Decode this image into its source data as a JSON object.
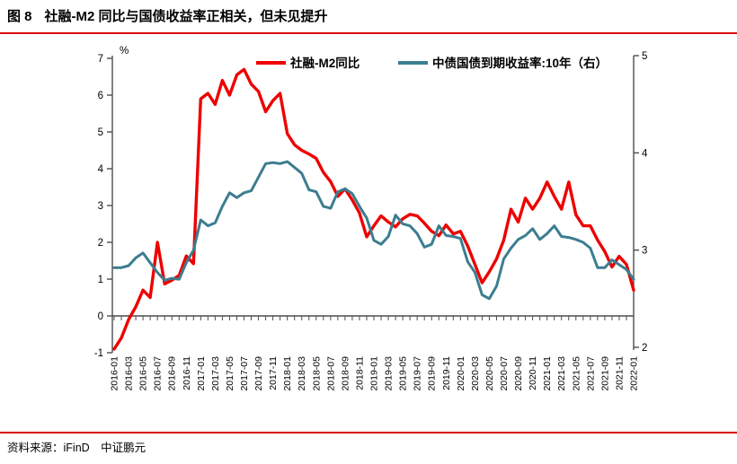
{
  "page": {
    "title_tag": "图 8",
    "title_text": "社融-M2 同比与国债收益率正相关，但未见提升",
    "source_text": "资料来源：iFinD　中证鹏元"
  },
  "colors": {
    "rule_red": "#d80000",
    "series_red": "#ee0000",
    "series_teal": "#3c7d90",
    "axis_line": "#4d4d4d",
    "label_text": "#000000"
  },
  "chart_data": {
    "type": "line",
    "x": [
      "2016-01",
      "2016-02",
      "2016-03",
      "2016-04",
      "2016-05",
      "2016-06",
      "2016-07",
      "2016-08",
      "2016-09",
      "2016-10",
      "2016-11",
      "2016-12",
      "2017-01",
      "2017-02",
      "2017-03",
      "2017-04",
      "2017-05",
      "2017-06",
      "2017-07",
      "2017-08",
      "2017-09",
      "2017-10",
      "2017-11",
      "2017-12",
      "2018-01",
      "2018-02",
      "2018-03",
      "2018-04",
      "2018-05",
      "2018-06",
      "2018-07",
      "2018-08",
      "2018-09",
      "2018-10",
      "2018-11",
      "2018-12",
      "2019-01",
      "2019-02",
      "2019-03",
      "2019-04",
      "2019-05",
      "2019-06",
      "2019-07",
      "2019-08",
      "2019-09",
      "2019-10",
      "2019-11",
      "2019-12",
      "2020-01",
      "2020-02",
      "2020-03",
      "2020-04",
      "2020-05",
      "2020-06",
      "2020-07",
      "2020-08",
      "2020-09",
      "2020-10",
      "2020-11",
      "2020-12",
      "2021-01",
      "2021-02",
      "2021-03",
      "2021-04",
      "2021-05",
      "2021-06",
      "2021-07",
      "2021-08",
      "2021-09",
      "2021-10",
      "2021-11",
      "2021-12",
      "2022-01"
    ],
    "x_label_every": 2,
    "series": [
      {
        "name": "社融-M2同比",
        "axis": "left",
        "values": [
          -0.9,
          -0.6,
          -0.1,
          0.25,
          0.7,
          0.5,
          2.0,
          0.87,
          0.97,
          1.1,
          1.63,
          1.42,
          5.9,
          6.05,
          5.75,
          6.4,
          6.0,
          6.55,
          6.7,
          6.3,
          6.1,
          5.55,
          5.85,
          6.05,
          4.95,
          4.65,
          4.5,
          4.4,
          4.28,
          3.9,
          3.65,
          3.25,
          3.45,
          3.15,
          2.8,
          2.15,
          2.45,
          2.72,
          2.55,
          2.42,
          2.64,
          2.76,
          2.72,
          2.52,
          2.3,
          2.18,
          2.47,
          2.23,
          2.3,
          1.9,
          1.4,
          0.9,
          1.2,
          1.55,
          2.06,
          2.9,
          2.55,
          3.2,
          2.9,
          3.2,
          3.64,
          3.25,
          2.9,
          3.64,
          2.75,
          2.45,
          2.45,
          2.06,
          1.75,
          1.33,
          1.62,
          1.4,
          0.7
        ]
      },
      {
        "name": "中债国债到期收益率:10年（右）",
        "axis": "right",
        "values": [
          2.82,
          2.82,
          2.84,
          2.92,
          2.97,
          2.87,
          2.77,
          2.69,
          2.71,
          2.7,
          2.87,
          3.0,
          3.31,
          3.25,
          3.28,
          3.45,
          3.59,
          3.54,
          3.59,
          3.61,
          3.75,
          3.89,
          3.9,
          3.89,
          3.91,
          3.85,
          3.79,
          3.62,
          3.6,
          3.45,
          3.43,
          3.6,
          3.63,
          3.58,
          3.45,
          3.33,
          3.1,
          3.06,
          3.14,
          3.36,
          3.27,
          3.25,
          3.17,
          3.03,
          3.06,
          3.25,
          3.15,
          3.14,
          3.12,
          2.88,
          2.77,
          2.54,
          2.5,
          2.63,
          2.91,
          3.02,
          3.11,
          3.15,
          3.22,
          3.11,
          3.17,
          3.25,
          3.14,
          3.13,
          3.11,
          3.08,
          3.02,
          2.82,
          2.82,
          2.9,
          2.85,
          2.8,
          2.7
        ]
      }
    ],
    "left_axis": {
      "label": "%",
      "min": -1,
      "max": 7,
      "ticks": [
        -1,
        0,
        1,
        2,
        3,
        4,
        5,
        6,
        7
      ]
    },
    "right_axis": {
      "min": 2,
      "max": 5,
      "ticks": [
        2,
        3,
        4,
        5
      ]
    },
    "legend_position": "top",
    "grid": false
  }
}
